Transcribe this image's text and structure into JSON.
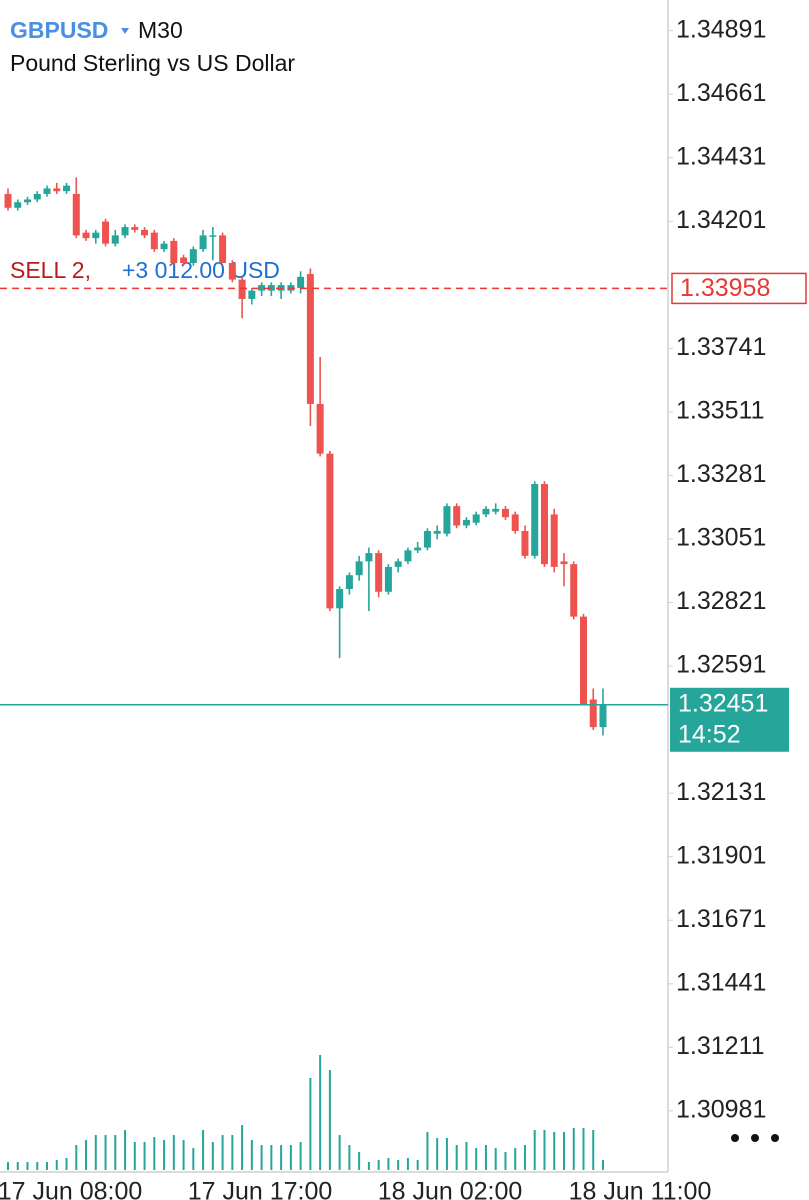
{
  "chart_data": {
    "type": "candlestick",
    "title": "GBPUSD",
    "timeframe": "M30",
    "subtitle": "Pound Sterling vs US Dollar",
    "colors": {
      "up": "#26a69a",
      "down": "#ef5350"
    },
    "open": [
      1.343,
      1.3425,
      1.3427,
      1.3428,
      1.343,
      1.3432,
      1.3431,
      1.343,
      1.3416,
      1.3414,
      1.342,
      1.3412,
      1.3415,
      1.3418,
      1.3417,
      1.3416,
      1.341,
      1.3413,
      1.3407,
      1.3405,
      1.341,
      1.3415,
      1.3415,
      1.3405,
      1.3399,
      1.3392,
      1.3395,
      1.3395,
      1.3395,
      1.3395,
      1.3396,
      1.3401,
      1.3354,
      1.3336,
      1.328,
      1.3287,
      1.3292,
      1.3297,
      1.33,
      1.3286,
      1.3295,
      1.3297,
      1.3301,
      1.3302,
      1.3307,
      1.3307,
      1.3317,
      1.331,
      1.3311,
      1.3314,
      1.3315,
      1.3316,
      1.3314,
      1.3308,
      1.3299,
      1.3325,
      1.3314,
      1.3297,
      1.3296,
      1.3277,
      1.3247,
      1.3237
    ],
    "high": [
      1.3432,
      1.3428,
      1.3429,
      1.3431,
      1.3433,
      1.3434,
      1.3434,
      1.3436,
      1.3417,
      1.3417,
      1.3421,
      1.3417,
      1.3419,
      1.3419,
      1.3418,
      1.3417,
      1.3413,
      1.3414,
      1.3408,
      1.3411,
      1.3417,
      1.3418,
      1.3416,
      1.3406,
      1.34,
      1.3396,
      1.3398,
      1.3398,
      1.3398,
      1.3398,
      1.3402,
      1.3403,
      1.3371,
      1.3337,
      1.3288,
      1.3293,
      1.3299,
      1.3302,
      1.3301,
      1.3296,
      1.3298,
      1.3302,
      1.3304,
      1.3309,
      1.331,
      1.3318,
      1.3318,
      1.3313,
      1.3315,
      1.3317,
      1.3318,
      1.3317,
      1.3315,
      1.331,
      1.3326,
      1.3326,
      1.3316,
      1.33,
      1.3297,
      1.3278,
      1.3251,
      1.3251
    ],
    "low": [
      1.3424,
      1.3424,
      1.3426,
      1.3427,
      1.3429,
      1.343,
      1.343,
      1.3414,
      1.3413,
      1.3412,
      1.3411,
      1.3411,
      1.3414,
      1.3416,
      1.3414,
      1.3409,
      1.3409,
      1.3404,
      1.3404,
      1.3404,
      1.3409,
      1.3406,
      1.3405,
      1.3398,
      1.3385,
      1.339,
      1.3393,
      1.3393,
      1.3392,
      1.3394,
      1.3394,
      1.3346,
      1.3335,
      1.3279,
      1.3262,
      1.3285,
      1.329,
      1.3279,
      1.3284,
      1.3285,
      1.3293,
      1.3296,
      1.33,
      1.3301,
      1.3305,
      1.3306,
      1.3309,
      1.3309,
      1.331,
      1.3313,
      1.3314,
      1.3312,
      1.3307,
      1.3298,
      1.3298,
      1.3295,
      1.3293,
      1.3288,
      1.3276,
      1.3245,
      1.3236,
      1.3234
    ],
    "close": [
      1.3425,
      1.3427,
      1.3428,
      1.343,
      1.3432,
      1.3431,
      1.3433,
      1.3415,
      1.3414,
      1.3416,
      1.3412,
      1.3415,
      1.3418,
      1.3417,
      1.3415,
      1.341,
      1.3412,
      1.3405,
      1.3405,
      1.341,
      1.3415,
      1.3415,
      1.3405,
      1.3399,
      1.3392,
      1.3395,
      1.3397,
      1.3397,
      1.3397,
      1.3397,
      1.34,
      1.3354,
      1.3336,
      1.328,
      1.3287,
      1.3292,
      1.3297,
      1.33,
      1.3286,
      1.3295,
      1.3297,
      1.3301,
      1.3302,
      1.3308,
      1.3308,
      1.3317,
      1.331,
      1.3312,
      1.3314,
      1.3316,
      1.3316,
      1.3313,
      1.3308,
      1.3299,
      1.3325,
      1.3296,
      1.3295,
      1.3296,
      1.3277,
      1.3245,
      1.3237,
      1.3245
    ],
    "volume": [
      8,
      8,
      8,
      8,
      8,
      10,
      12,
      25,
      30,
      35,
      35,
      35,
      40,
      28,
      28,
      33,
      30,
      35,
      30,
      22,
      40,
      28,
      35,
      35,
      45,
      30,
      25,
      25,
      25,
      25,
      28,
      92,
      115,
      100,
      35,
      25,
      18,
      8,
      10,
      12,
      10,
      12,
      10,
      38,
      32,
      32,
      25,
      28,
      22,
      25,
      22,
      18,
      22,
      25,
      40,
      40,
      38,
      38,
      42,
      42,
      40,
      10
    ],
    "ylim": [
      1.30767,
      1.35002
    ],
    "yticks": [
      1.34891,
      1.34661,
      1.34431,
      1.34201,
      1.33741,
      1.33511,
      1.33281,
      1.33051,
      1.32821,
      1.32591,
      1.32131,
      1.31901,
      1.31671,
      1.31441,
      1.31211,
      1.30981
    ],
    "x_labels": [
      "17 Jun 08:00",
      "17 Jun 17:00",
      "18 Jun 02:00",
      "18 Jun 11:00"
    ],
    "order": {
      "label": "SELL 2,",
      "profit": "+3 012.00 USD",
      "price": 1.33958,
      "color": "#e53935"
    },
    "current": {
      "price": 1.32451,
      "timer": "14:52",
      "color": "#26a69a"
    }
  }
}
